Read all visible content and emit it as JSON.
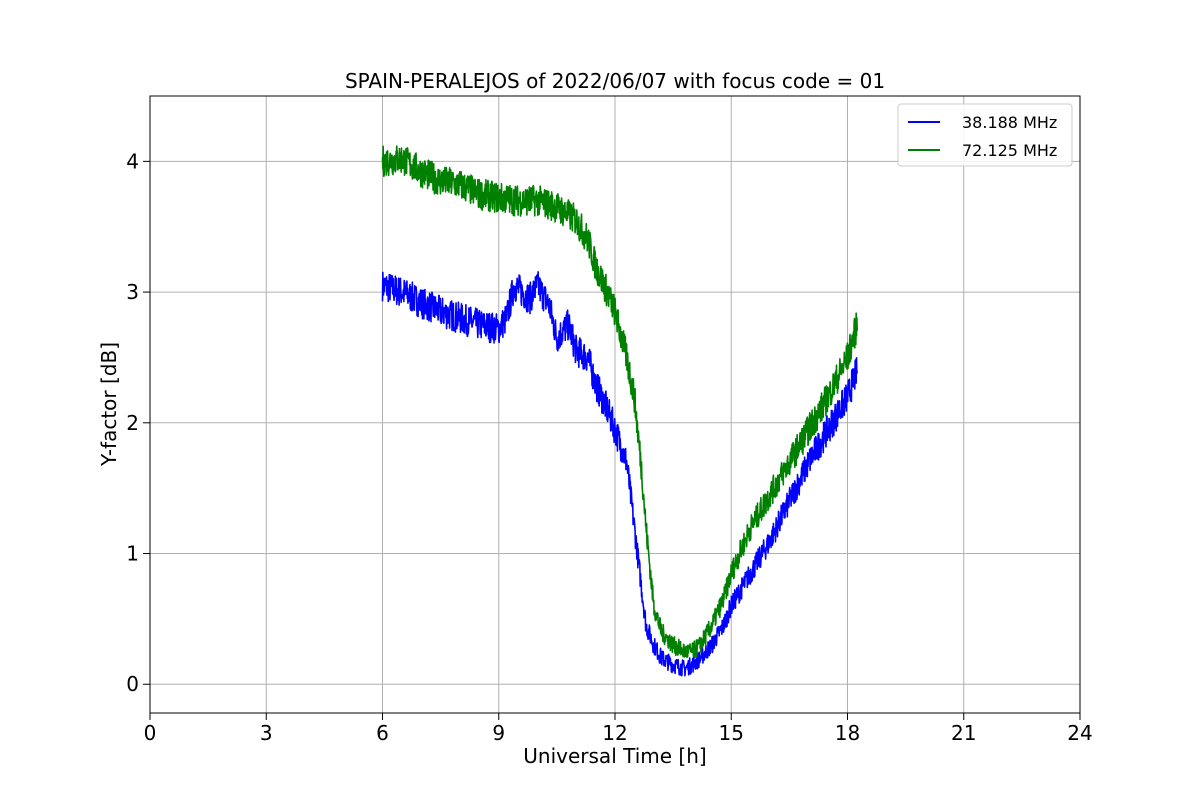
{
  "chart_data": {
    "type": "line",
    "title": "SPAIN-PERALEJOS of 2022/06/07 with focus code = 01",
    "xlabel": "Universal Time [h]",
    "ylabel": "Y-factor [dB]",
    "xlim": [
      0,
      24
    ],
    "ylim": [
      -0.22,
      4.5
    ],
    "xticks": [
      "0",
      "3",
      "6",
      "9",
      "12",
      "15",
      "18",
      "21",
      "24"
    ],
    "yticks": [
      "0",
      "1",
      "2",
      "3",
      "4"
    ],
    "grid": true,
    "legend_position": "top-right",
    "series": [
      {
        "name": "38.188 MHz",
        "color": "#0000ff",
        "x": [
          6.0,
          6.5,
          7.0,
          7.5,
          8.0,
          8.5,
          9.0,
          9.2,
          9.4,
          9.6,
          9.8,
          10.0,
          10.3,
          10.5,
          10.8,
          11.0,
          11.3,
          11.5,
          11.8,
          12.0,
          12.3,
          12.5,
          12.7,
          12.8,
          13.0,
          13.2,
          13.5,
          13.8,
          14.0,
          14.2,
          14.5,
          14.8,
          15.0,
          15.5,
          16.0,
          16.5,
          17.0,
          17.5,
          18.0,
          18.25
        ],
        "y": [
          3.05,
          3.0,
          2.92,
          2.85,
          2.8,
          2.75,
          2.72,
          2.8,
          3.05,
          3.0,
          2.95,
          3.05,
          2.9,
          2.65,
          2.75,
          2.55,
          2.5,
          2.3,
          2.1,
          1.95,
          1.7,
          1.2,
          0.7,
          0.45,
          0.3,
          0.2,
          0.15,
          0.12,
          0.15,
          0.2,
          0.3,
          0.45,
          0.6,
          0.85,
          1.1,
          1.4,
          1.7,
          1.95,
          2.2,
          2.4
        ]
      },
      {
        "name": "72.125 MHz",
        "color": "#008000",
        "x": [
          6.0,
          6.5,
          7.0,
          7.5,
          8.0,
          8.5,
          9.0,
          9.5,
          10.0,
          10.5,
          11.0,
          11.3,
          11.5,
          11.8,
          12.0,
          12.3,
          12.5,
          12.7,
          12.8,
          13.0,
          13.2,
          13.5,
          13.8,
          14.0,
          14.2,
          14.5,
          14.8,
          15.0,
          15.5,
          16.0,
          16.5,
          17.0,
          17.5,
          18.0,
          18.25
        ],
        "y": [
          4.0,
          4.02,
          3.92,
          3.85,
          3.82,
          3.75,
          3.72,
          3.7,
          3.7,
          3.65,
          3.55,
          3.4,
          3.2,
          3.0,
          2.85,
          2.5,
          2.2,
          1.6,
          1.2,
          0.6,
          0.4,
          0.3,
          0.25,
          0.25,
          0.3,
          0.45,
          0.65,
          0.85,
          1.2,
          1.45,
          1.7,
          1.95,
          2.2,
          2.5,
          2.75
        ]
      }
    ]
  }
}
